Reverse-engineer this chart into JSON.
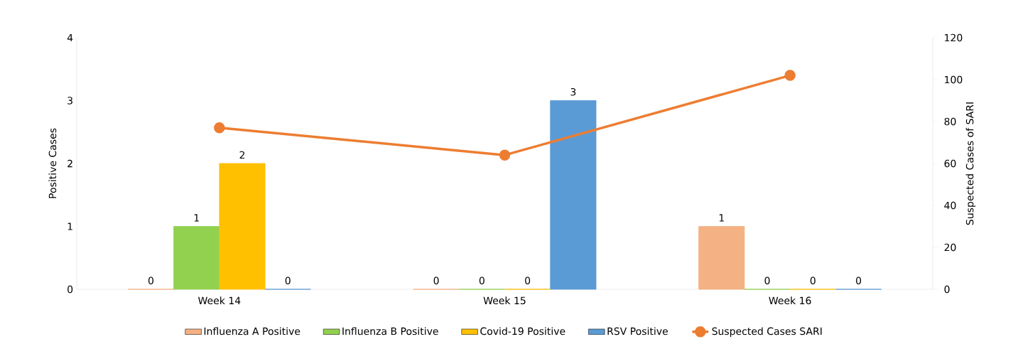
{
  "chart_data": {
    "type": "bar",
    "categories": [
      "Week 14",
      "Week 15",
      "Week 16"
    ],
    "ylabel": "Positive Cases",
    "y2label": "Suspected Cases of SARI",
    "ylim": [
      0,
      4
    ],
    "yticks": [
      0,
      1,
      2,
      3,
      4
    ],
    "y2lim": [
      0,
      120
    ],
    "y2ticks": [
      0,
      20,
      40,
      60,
      80,
      100,
      120
    ],
    "legend": "bottom",
    "series": [
      {
        "name": "Influenza A Positive",
        "color": "#f4b183",
        "values": [
          0,
          0,
          1
        ],
        "value_labels": [
          "0",
          "0",
          "1"
        ]
      },
      {
        "name": "Influenza B Positive",
        "color": "#92d050",
        "values": [
          1,
          0,
          0
        ],
        "value_labels": [
          "1",
          "0",
          "0"
        ]
      },
      {
        "name": "Covid-19 Positive",
        "color": "#ffc000",
        "values": [
          2,
          0,
          0
        ],
        "value_labels": [
          "2",
          "0",
          "0"
        ]
      },
      {
        "name": "RSV Positive",
        "color": "#5b9bd5",
        "values": [
          0,
          3,
          0
        ],
        "value_labels": [
          "0",
          "3",
          "0"
        ]
      },
      {
        "name": "Suspected Cases SARI",
        "type": "line",
        "axis": "y2",
        "color": "#ed7d31",
        "marker": "circle",
        "values": [
          77,
          64,
          102
        ]
      }
    ]
  }
}
